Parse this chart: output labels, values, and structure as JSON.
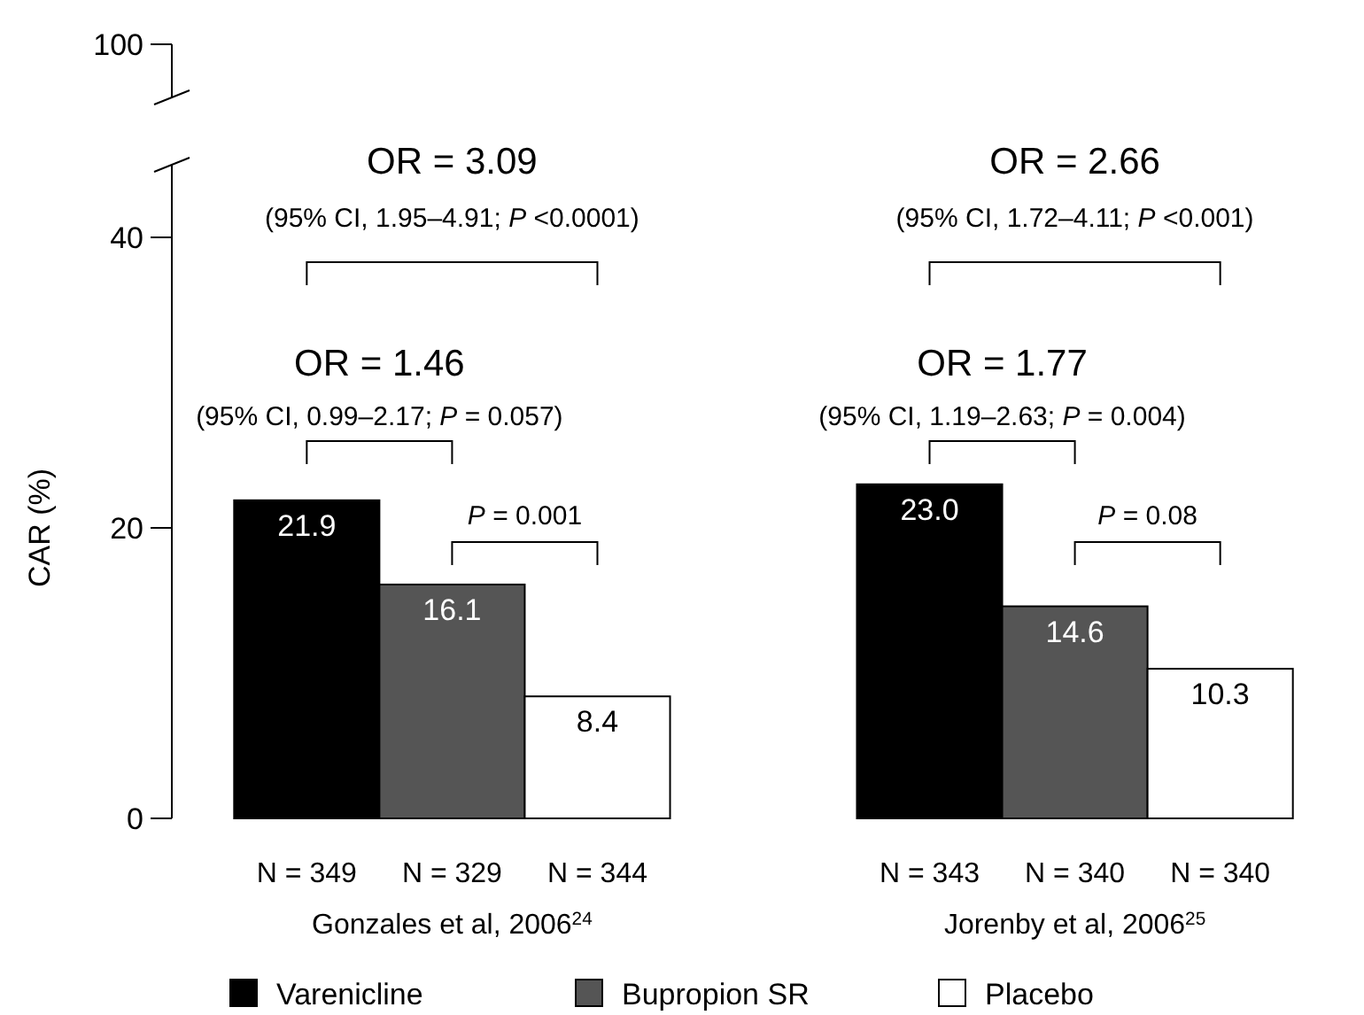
{
  "chart_data": {
    "type": "bar",
    "ylabel": "CAR (%)",
    "categories": [
      "Gonzales et al, 2006$^{24}$",
      "Jorenby et al, 2006$^{25}$"
    ],
    "series": [
      {
        "name": "Varenicline",
        "color": "#000000",
        "values": [
          21.9,
          23.0
        ],
        "value_labels": [
          "21.9",
          "23.0"
        ]
      },
      {
        "name": "Bupropion SR",
        "color": "#555555",
        "values": [
          16.1,
          14.6
        ],
        "value_labels": [
          "16.1",
          "14.6"
        ]
      },
      {
        "name": "Placebo",
        "color": "#ffffff",
        "values": [
          8.4,
          10.3
        ],
        "value_labels": [
          "8.4",
          "10.3"
        ]
      }
    ],
    "ylim": [
      0,
      45
    ],
    "yticks": [
      0,
      20,
      40
    ],
    "legend": "bottom",
    "grid": false,
    "annotations": [
      "OR = 3.09",
      "(95% CI, 1.95–4.91; P <0.0001)",
      "OR = 1.46",
      "(95% CI, 0.99–2.17; P = 0.057)",
      "P = 0.001",
      "OR = 2.66",
      "(95% CI, 1.72–4.11; P <0.001)",
      "OR = 1.77",
      "(95% CI, 1.19–2.63; P = 0.004)",
      "P = 0.08",
      "N = 349",
      "N = 329",
      "N = 344",
      "N = 343",
      "N = 340",
      "N = 340",
      "100"
    ]
  }
}
